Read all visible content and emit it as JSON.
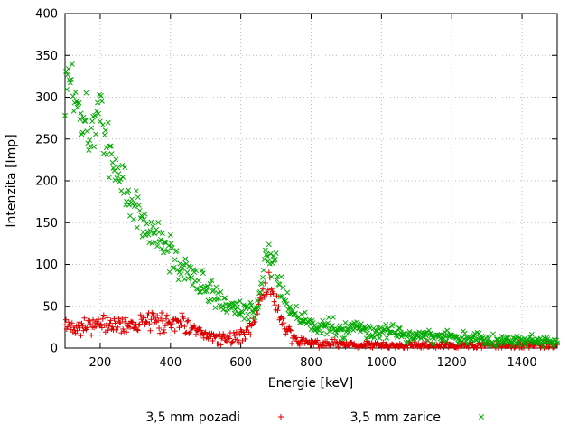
{
  "chart_data": {
    "type": "scatter",
    "title": "",
    "xlabel": "Energie [keV]",
    "ylabel": "Intenzita [Imp]",
    "xlim": [
      100,
      1500
    ],
    "ylim": [
      0,
      400
    ],
    "x_ticks": [
      200,
      400,
      600,
      800,
      1000,
      1200,
      1400
    ],
    "y_ticks": [
      0,
      50,
      100,
      150,
      200,
      250,
      300,
      350,
      400
    ],
    "grid": true,
    "grid_color": "#bbbbbb",
    "border_color": "#000000",
    "background": "#ffffff",
    "legend_position": "bottom-center-outside",
    "series": [
      {
        "name": "3,5 mm pozadi",
        "marker": "plus",
        "color": "#dd0000",
        "points": [
          [
            100,
            27
          ],
          [
            120,
            26
          ],
          [
            140,
            27
          ],
          [
            160,
            28
          ],
          [
            180,
            27
          ],
          [
            200,
            28
          ],
          [
            220,
            27
          ],
          [
            240,
            28
          ],
          [
            260,
            29
          ],
          [
            280,
            28
          ],
          [
            300,
            30
          ],
          [
            320,
            31
          ],
          [
            340,
            32
          ],
          [
            360,
            31
          ],
          [
            380,
            30
          ],
          [
            400,
            32
          ],
          [
            410,
            33
          ],
          [
            420,
            34
          ],
          [
            430,
            32
          ],
          [
            440,
            30
          ],
          [
            450,
            26
          ],
          [
            460,
            22
          ],
          [
            470,
            19
          ],
          [
            480,
            17
          ],
          [
            490,
            15
          ],
          [
            500,
            14
          ],
          [
            520,
            13
          ],
          [
            540,
            12
          ],
          [
            560,
            12
          ],
          [
            580,
            13
          ],
          [
            600,
            15
          ],
          [
            610,
            17
          ],
          [
            620,
            20
          ],
          [
            630,
            26
          ],
          [
            640,
            36
          ],
          [
            650,
            50
          ],
          [
            660,
            64
          ],
          [
            670,
            73
          ],
          [
            680,
            76
          ],
          [
            690,
            68
          ],
          [
            700,
            54
          ],
          [
            710,
            40
          ],
          [
            720,
            28
          ],
          [
            730,
            20
          ],
          [
            740,
            14
          ],
          [
            750,
            11
          ],
          [
            760,
            9
          ],
          [
            780,
            7
          ],
          [
            800,
            6
          ],
          [
            850,
            5
          ],
          [
            900,
            4
          ],
          [
            950,
            4
          ],
          [
            1000,
            3
          ],
          [
            1100,
            3
          ],
          [
            1200,
            3
          ],
          [
            1300,
            3
          ],
          [
            1400,
            3
          ],
          [
            1500,
            3
          ]
        ]
      },
      {
        "name": "3,5 mm zarice",
        "marker": "x",
        "color": "#00aa00",
        "points": [
          [
            100,
            305
          ],
          [
            110,
            330
          ],
          [
            120,
            318
          ],
          [
            130,
            300
          ],
          [
            140,
            293
          ],
          [
            150,
            283
          ],
          [
            160,
            272
          ],
          [
            170,
            265
          ],
          [
            180,
            270
          ],
          [
            190,
            278
          ],
          [
            200,
            283
          ],
          [
            210,
            258
          ],
          [
            220,
            244
          ],
          [
            230,
            233
          ],
          [
            240,
            220
          ],
          [
            250,
            210
          ],
          [
            260,
            200
          ],
          [
            270,
            192
          ],
          [
            280,
            184
          ],
          [
            290,
            176
          ],
          [
            300,
            168
          ],
          [
            320,
            154
          ],
          [
            340,
            142
          ],
          [
            360,
            131
          ],
          [
            380,
            121
          ],
          [
            400,
            112
          ],
          [
            420,
            103
          ],
          [
            440,
            95
          ],
          [
            460,
            88
          ],
          [
            480,
            80
          ],
          [
            500,
            73
          ],
          [
            520,
            66
          ],
          [
            540,
            60
          ],
          [
            560,
            54
          ],
          [
            580,
            48
          ],
          [
            600,
            44
          ],
          [
            610,
            42
          ],
          [
            620,
            40
          ],
          [
            630,
            42
          ],
          [
            640,
            50
          ],
          [
            650,
            63
          ],
          [
            660,
            82
          ],
          [
            670,
            102
          ],
          [
            680,
            113
          ],
          [
            690,
            108
          ],
          [
            700,
            94
          ],
          [
            710,
            79
          ],
          [
            720,
            65
          ],
          [
            730,
            54
          ],
          [
            740,
            46
          ],
          [
            750,
            41
          ],
          [
            760,
            37
          ],
          [
            780,
            32
          ],
          [
            800,
            29
          ],
          [
            820,
            27
          ],
          [
            840,
            26
          ],
          [
            860,
            25
          ],
          [
            880,
            24
          ],
          [
            900,
            23
          ],
          [
            950,
            21
          ],
          [
            1000,
            19
          ],
          [
            1050,
            17
          ],
          [
            1100,
            15
          ],
          [
            1150,
            14
          ],
          [
            1200,
            13
          ],
          [
            1250,
            12
          ],
          [
            1300,
            11
          ],
          [
            1350,
            10
          ],
          [
            1400,
            9
          ],
          [
            1450,
            9
          ],
          [
            1500,
            8
          ]
        ]
      }
    ]
  }
}
